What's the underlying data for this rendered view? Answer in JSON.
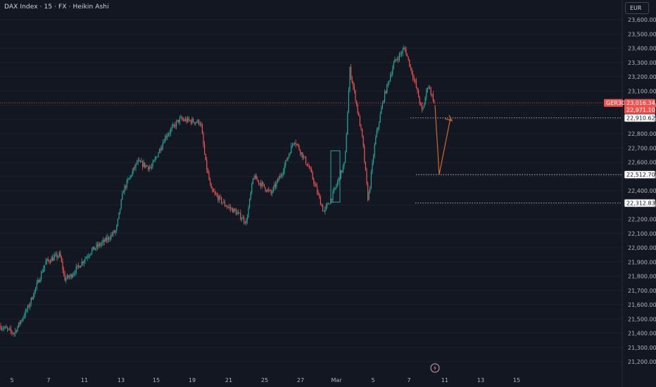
{
  "header": {
    "title": "DAX Index · 15 · FX · Heikin Ashi",
    "currency_button": "EUR"
  },
  "colors": {
    "background": "#131722",
    "bull": "#26a69a",
    "bear": "#ef5350",
    "current_price_line": "#ef5350",
    "projection_arrow": "#d06a2a",
    "highlight_box": "#26a69a",
    "axis_text": "#b2b5be"
  },
  "price_axis": {
    "labels": [
      "23,600.00",
      "23,500.00",
      "23,400.00",
      "23,300.00",
      "23,200.00",
      "23,100.00",
      "23,000.00",
      "22,900.00",
      "22,800.00",
      "22,700.00",
      "22,600.00",
      "22,500.00",
      "22,400.00",
      "22,300.00",
      "22,200.00",
      "22,100.00",
      "22,000.00",
      "21,900.00",
      "21,800.00",
      "21,700.00",
      "21,600.00",
      "21,500.00",
      "21,400.00",
      "21,300.00",
      "21,200.00"
    ]
  },
  "time_axis": {
    "labels": [
      "5",
      "7",
      "11",
      "13",
      "15",
      "19",
      "21",
      "25",
      "27",
      "Mar",
      "5",
      "7",
      "11",
      "13",
      "15"
    ]
  },
  "price_tags": {
    "symbol": "GER30",
    "current": "23,016.34",
    "second": "22,971.10",
    "level_1": "22,910.62",
    "level_2": "22,512.70",
    "level_3": "22,312.83"
  },
  "chart_data": {
    "type": "candlestick",
    "style": "Heikin Ashi",
    "symbol": "DAX Index",
    "interval": "15",
    "currency": "EUR",
    "y_range": [
      21200,
      23600
    ],
    "current_price": 23016.34,
    "horizontal_levels": [
      22910.62,
      22512.7,
      22312.83
    ],
    "projection_path": [
      23000,
      22512.7,
      22910.62
    ],
    "trend_points": [
      {
        "x": "5",
        "y": 21450
      },
      {
        "x": "7",
        "y": 21800
      },
      {
        "x": "11",
        "y": 21980
      },
      {
        "x": "13",
        "y": 22300
      },
      {
        "x": "15",
        "y": 22560
      },
      {
        "x": "19",
        "y": 22900
      },
      {
        "x": "21",
        "y": 22350
      },
      {
        "x": "25",
        "y": 22450
      },
      {
        "x": "27",
        "y": 22780
      },
      {
        "x": "Mar",
        "y": 22260
      },
      {
        "x": "Mar",
        "y": 23300
      },
      {
        "x": "5",
        "y": 22330
      },
      {
        "x": "5",
        "y": 23130
      },
      {
        "x": "7",
        "y": 23400
      },
      {
        "x": "11",
        "y": 22950
      }
    ]
  }
}
